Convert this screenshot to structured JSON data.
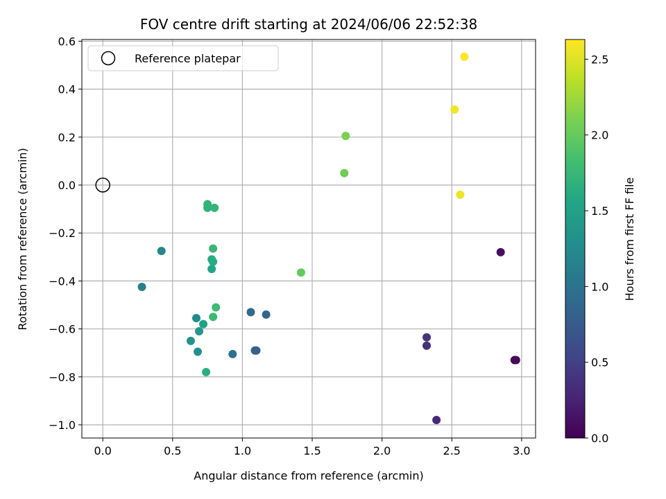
{
  "chart_data": {
    "type": "scatter",
    "title": "FOV centre drift starting at 2024/06/06 22:52:38",
    "xlabel": "Angular distance from reference (arcmin)",
    "ylabel": "Rotation from reference (arcmin)",
    "xlim": [
      -0.15,
      3.1
    ],
    "ylim": [
      -1.055,
      0.607
    ],
    "xticks": [
      0.0,
      0.5,
      1.0,
      1.5,
      2.0,
      2.5,
      3.0
    ],
    "xtick_labels": [
      "0.0",
      "0.5",
      "1.0",
      "1.5",
      "2.0",
      "2.5",
      "3.0"
    ],
    "yticks": [
      0.6,
      0.4,
      0.2,
      0.0,
      -0.2,
      -0.4,
      -0.6,
      -0.8,
      -1.0
    ],
    "ytick_labels": [
      "0.6",
      "0.4",
      "0.2",
      "0.0",
      "−0.2",
      "−0.4",
      "−0.6",
      "−0.8",
      "−1.0"
    ],
    "grid": true,
    "legend": {
      "placement": "top-left",
      "entries": [
        {
          "label": "Reference platepar",
          "marker": "open-circle"
        }
      ]
    },
    "reference_point": {
      "x": 0.0,
      "y": 0.0
    },
    "colorbar": {
      "label": "Hours from first FF file",
      "colormap": "viridis",
      "range": [
        0.0,
        2.63
      ],
      "ticks": [
        0.0,
        0.5,
        1.0,
        1.5,
        2.0,
        2.5
      ],
      "tick_labels": [
        "0.0",
        "0.5",
        "1.0",
        "1.5",
        "2.0",
        "2.5"
      ]
    },
    "points": [
      {
        "x": 2.95,
        "y": -0.73,
        "c": 0.0
      },
      {
        "x": 2.96,
        "y": -0.73,
        "c": 0.05
      },
      {
        "x": 2.85,
        "y": -0.28,
        "c": 0.1
      },
      {
        "x": 2.39,
        "y": -0.98,
        "c": 0.3
      },
      {
        "x": 2.32,
        "y": -0.67,
        "c": 0.35
      },
      {
        "x": 2.32,
        "y": -0.635,
        "c": 0.4
      },
      {
        "x": 1.1,
        "y": -0.69,
        "c": 0.8
      },
      {
        "x": 1.09,
        "y": -0.69,
        "c": 0.82
      },
      {
        "x": 1.17,
        "y": -0.54,
        "c": 0.85
      },
      {
        "x": 1.06,
        "y": -0.53,
        "c": 0.9
      },
      {
        "x": 0.93,
        "y": -0.705,
        "c": 1.0
      },
      {
        "x": 0.28,
        "y": -0.425,
        "c": 1.15
      },
      {
        "x": 0.42,
        "y": -0.275,
        "c": 1.2
      },
      {
        "x": 0.67,
        "y": -0.555,
        "c": 1.25
      },
      {
        "x": 0.68,
        "y": -0.695,
        "c": 1.3
      },
      {
        "x": 0.63,
        "y": -0.65,
        "c": 1.35
      },
      {
        "x": 0.69,
        "y": -0.61,
        "c": 1.4
      },
      {
        "x": 0.72,
        "y": -0.58,
        "c": 1.5
      },
      {
        "x": 0.78,
        "y": -0.35,
        "c": 1.55
      },
      {
        "x": 0.78,
        "y": -0.31,
        "c": 1.6
      },
      {
        "x": 0.79,
        "y": -0.32,
        "c": 1.62
      },
      {
        "x": 0.74,
        "y": -0.78,
        "c": 1.65
      },
      {
        "x": 0.75,
        "y": -0.095,
        "c": 1.68
      },
      {
        "x": 0.75,
        "y": -0.08,
        "c": 1.7
      },
      {
        "x": 0.8,
        "y": -0.095,
        "c": 1.72
      },
      {
        "x": 0.79,
        "y": -0.265,
        "c": 1.75
      },
      {
        "x": 0.79,
        "y": -0.55,
        "c": 1.78
      },
      {
        "x": 0.81,
        "y": -0.51,
        "c": 1.8
      },
      {
        "x": 1.42,
        "y": -0.365,
        "c": 2.0
      },
      {
        "x": 1.73,
        "y": 0.05,
        "c": 2.05
      },
      {
        "x": 1.74,
        "y": 0.205,
        "c": 2.1
      },
      {
        "x": 2.56,
        "y": -0.04,
        "c": 2.55
      },
      {
        "x": 2.52,
        "y": 0.315,
        "c": 2.58
      },
      {
        "x": 2.59,
        "y": 0.535,
        "c": 2.63
      }
    ]
  }
}
